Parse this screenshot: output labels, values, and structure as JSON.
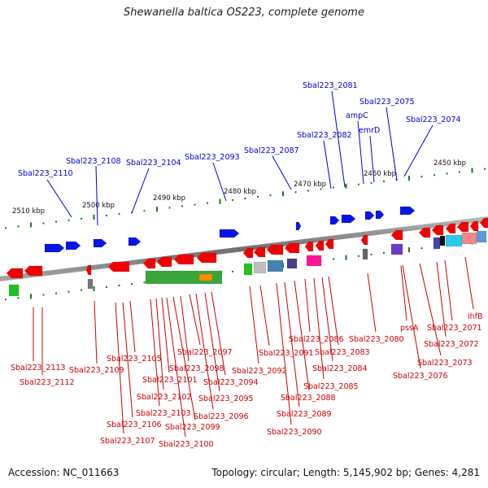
{
  "title": "Shewanella baltica OS223, complete genome",
  "footer": {
    "accession": "Accession: NC_011663",
    "topology": "Topology: circular; Length: 5,145,902 bp; Genes: 4,281"
  },
  "colors": {
    "forward_label": "#0000cc",
    "reverse_label": "#cc0000",
    "backbone": "#808080",
    "tick": "#1a7a1a"
  },
  "kbp_labels": [
    "2510 kbp",
    "2500 kbp",
    "2490 kbp",
    "2480 kbp",
    "2470 kbp",
    "2460 kbp",
    "2450 kbp"
  ],
  "forward_labels": [
    "Sbal223_2110",
    "Sbal223_2108",
    "Sbal223_2104",
    "Sbal223_2093",
    "Sbal223_2087",
    "Sbal223_2082",
    "Sbal223_2081",
    "ampC",
    "emrD",
    "Sbal223_2075",
    "Sbal223_2074"
  ],
  "reverse_labels": [
    "Sbal223_2113",
    "Sbal223_2112",
    "Sbal223_2109",
    "Sbal223_2105",
    "Sbal223_2107",
    "Sbal223_2106",
    "Sbal223_2103",
    "Sbal223_2102",
    "Sbal223_2101",
    "Sbal223_2100",
    "Sbal223_2099",
    "Sbal223_2098",
    "Sbal223_2097",
    "Sbal223_2096",
    "Sbal223_2095",
    "Sbal223_2094",
    "Sbal223_2092",
    "Sbal223_2091",
    "Sbal223_2090",
    "Sbal223_2089",
    "Sbal223_2088",
    "Sbal223_2086",
    "Sbal223_2085",
    "Sbal223_2084",
    "Sbal223_2083",
    "Sbal223_2080",
    "pssA",
    "Sbal223_2076",
    "Sbal223_2073",
    "Sbal223_2072",
    "Sbal223_2071",
    "ihfB"
  ]
}
